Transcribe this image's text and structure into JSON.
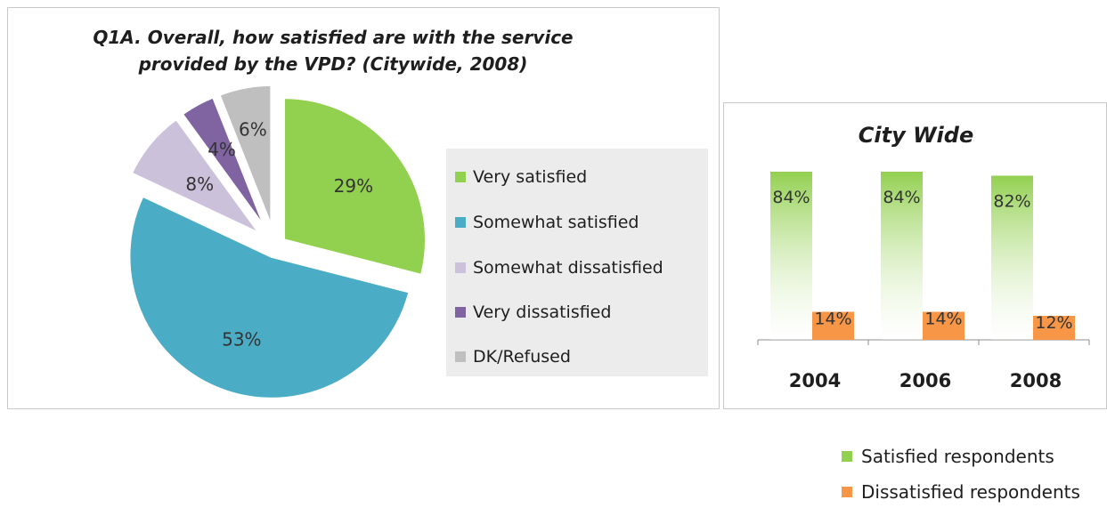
{
  "chart_data": [
    {
      "type": "pie",
      "title_line1": "Q1A. Overall, how satisfied are with the service",
      "title_line2": "provided by the VPD? (Citywide, 2008)",
      "slices": [
        {
          "label": "Very satisfied",
          "value": 29,
          "text": "29%",
          "color": "#92d050"
        },
        {
          "label": "Somewhat satisfied",
          "value": 53,
          "text": "53%",
          "color": "#4bacc6"
        },
        {
          "label": "Somewhat dissatisfied",
          "value": 8,
          "text": "8%",
          "color": "#ccc1da"
        },
        {
          "label": "Very dissatisfied",
          "value": 4,
          "text": "4%",
          "color": "#8064a2"
        },
        {
          "label": "DK/Refused",
          "value": 6,
          "text": "6%",
          "color": "#bfbfbf"
        }
      ],
      "legend_placement": "right"
    },
    {
      "type": "bar",
      "title": "City Wide",
      "categories": [
        "2004",
        "2006",
        "2008"
      ],
      "series": [
        {
          "name": "Satisfied respondents",
          "values": [
            84,
            84,
            82
          ],
          "labels": [
            "84%",
            "84%",
            "82%"
          ],
          "color": "#92d050"
        },
        {
          "name": "Dissatisfied respondents",
          "values": [
            14,
            14,
            12
          ],
          "labels": [
            "14%",
            "14%",
            "12%"
          ],
          "color": "#f79646"
        }
      ],
      "ylim": [
        0,
        100
      ],
      "legend_placement": "bottom"
    }
  ]
}
